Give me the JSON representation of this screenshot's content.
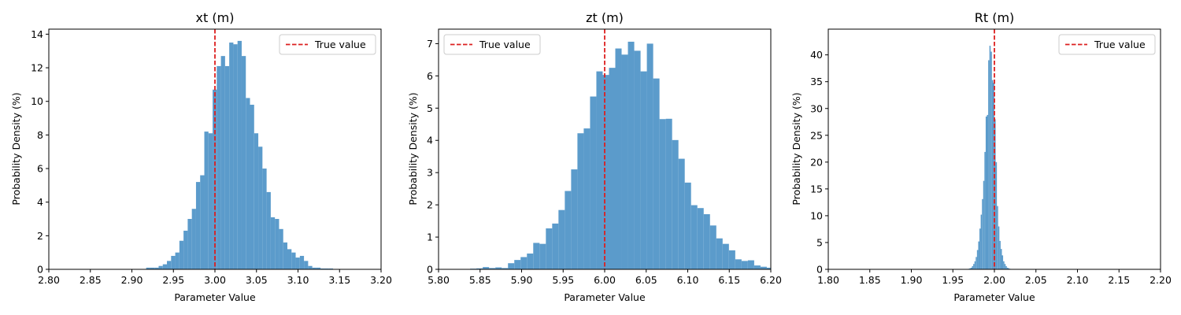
{
  "figure": {
    "bar_color": "#5b9bcb",
    "true_line_color": "#dc1f1f"
  },
  "chart_data": [
    {
      "type": "bar",
      "title": "xt (m)",
      "xlabel": "Parameter Value",
      "ylabel": "Probability Density (%)",
      "xlim": [
        2.8,
        3.2
      ],
      "ylim": [
        0,
        14.3
      ],
      "xticks": [
        "2.80",
        "2.85",
        "2.90",
        "2.95",
        "3.00",
        "3.05",
        "3.10",
        "3.15",
        "3.20"
      ],
      "yticks": [
        "0",
        "2",
        "4",
        "6",
        "8",
        "10",
        "12",
        "14"
      ],
      "legend": {
        "label": "True value",
        "placement": "top-right"
      },
      "true_value": 3.0,
      "bin_start": 2.9172,
      "bin_width": 0.005,
      "values": [
        0.1,
        0.1,
        0.1,
        0.2,
        0.3,
        0.5,
        0.8,
        1.0,
        1.7,
        2.3,
        3.0,
        3.6,
        5.2,
        5.6,
        8.2,
        8.1,
        10.7,
        12.1,
        12.7,
        12.1,
        13.5,
        13.4,
        13.6,
        12.7,
        10.2,
        9.8,
        8.1,
        7.3,
        6.0,
        4.6,
        3.1,
        3.0,
        2.4,
        1.6,
        1.2,
        1.0,
        0.7,
        0.8,
        0.5,
        0.2,
        0.1,
        0.1,
        0.05,
        0.05,
        0.05
      ]
    },
    {
      "type": "bar",
      "title": "zt (m)",
      "xlabel": "Parameter Value",
      "ylabel": "Probability Density (%)",
      "xlim": [
        5.8,
        6.2
      ],
      "ylim": [
        0,
        7.45
      ],
      "xticks": [
        "5.80",
        "5.85",
        "5.90",
        "5.95",
        "6.00",
        "6.05",
        "6.10",
        "6.15",
        "6.20"
      ],
      "yticks": [
        "0",
        "1",
        "2",
        "3",
        "4",
        "5",
        "6",
        "7"
      ],
      "legend": {
        "label": "True value",
        "placement": "top-left"
      },
      "true_value": 6.0,
      "bin_start": 5.838,
      "bin_width": 0.0076,
      "values": [
        0.02,
        0.03,
        0.07,
        0.04,
        0.06,
        0.04,
        0.19,
        0.29,
        0.38,
        0.49,
        0.82,
        0.79,
        1.27,
        1.42,
        1.84,
        2.43,
        3.1,
        4.22,
        4.37,
        5.36,
        6.14,
        6.03,
        6.25,
        6.85,
        6.66,
        7.06,
        6.78,
        6.14,
        7.0,
        5.92,
        4.66,
        4.67,
        4.01,
        3.43,
        2.69,
        1.99,
        1.9,
        1.71,
        1.36,
        0.96,
        0.79,
        0.59,
        0.31,
        0.26,
        0.28,
        0.12,
        0.08,
        0.05
      ]
    },
    {
      "type": "bar",
      "title": "Rt (m)",
      "xlabel": "Parameter Value",
      "ylabel": "Probability Density (%)",
      "xlim": [
        1.8,
        2.2
      ],
      "ylim": [
        0,
        44.8
      ],
      "xticks": [
        "1.80",
        "1.85",
        "1.90",
        "1.95",
        "2.00",
        "2.05",
        "2.10",
        "2.15",
        "2.20"
      ],
      "yticks": [
        "0",
        "5",
        "10",
        "15",
        "20",
        "25",
        "30",
        "35",
        "40"
      ],
      "legend": {
        "label": "True value",
        "placement": "top-right"
      },
      "true_value": 2.0,
      "bin_start": 1.9685,
      "bin_width": 0.0015,
      "values": [
        0.1,
        0.2,
        0.3,
        0.6,
        1.0,
        1.5,
        2.3,
        3.6,
        5.2,
        7.6,
        10.2,
        13.1,
        16.5,
        21.9,
        28.5,
        28.8,
        39.0,
        41.7,
        40.6,
        35.3,
        34.8,
        28.0,
        20.0,
        11.8,
        8.0,
        5.3,
        3.8,
        2.6,
        1.5,
        1.0,
        0.6,
        0.3,
        0.2,
        0.1
      ]
    }
  ]
}
